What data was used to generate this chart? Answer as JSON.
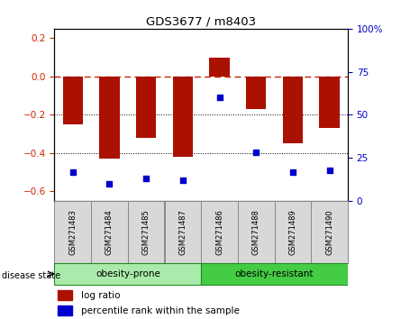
{
  "title": "GDS3677 / m8403",
  "samples": [
    "GSM271483",
    "GSM271484",
    "GSM271485",
    "GSM271487",
    "GSM271486",
    "GSM271488",
    "GSM271489",
    "GSM271490"
  ],
  "log_ratio": [
    -0.25,
    -0.43,
    -0.32,
    -0.42,
    0.1,
    -0.17,
    -0.35,
    -0.27
  ],
  "percentile_rank": [
    17,
    10,
    13,
    12,
    60,
    28,
    17,
    18
  ],
  "groups": [
    {
      "label": "obesity-prone",
      "indices": [
        0,
        1,
        2,
        3
      ],
      "color": "#aaeaaa"
    },
    {
      "label": "obesity-resistant",
      "indices": [
        4,
        5,
        6,
        7
      ],
      "color": "#44cc44"
    }
  ],
  "bar_color": "#aa1100",
  "dot_color": "#0000cc",
  "ylim_left": [
    -0.65,
    0.25
  ],
  "ylim_right": [
    0,
    100
  ],
  "yticks_left": [
    -0.6,
    -0.4,
    -0.2,
    0.0,
    0.2
  ],
  "yticks_right": [
    0,
    25,
    50,
    75,
    100
  ],
  "hline_y": 0.0,
  "dotted_lines": [
    -0.2,
    -0.4
  ],
  "background_color": "#ffffff",
  "bar_width": 0.55,
  "legend_log_ratio": "log ratio",
  "legend_percentile": "percentile rank within the sample",
  "disease_state_label": "disease state",
  "tick_label_color_left": "#cc2200",
  "tick_label_color_right": "#0000cc"
}
